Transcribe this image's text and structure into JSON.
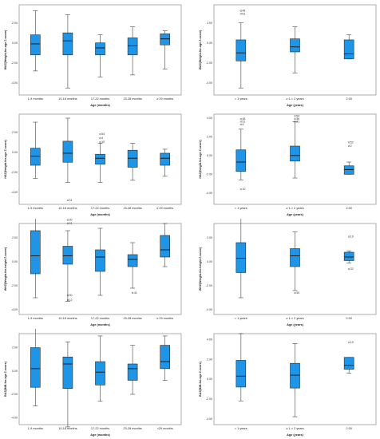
{
  "chart_data": [
    {
      "type": "box",
      "ylabel": "WAZ(Weight-for-age Z-score)",
      "xlabel": "Age (months)",
      "yticks": [
        2.0,
        0.0,
        -2.0,
        -4.0
      ],
      "ylim": [
        -5.2,
        3.8
      ],
      "categories": [
        {
          "label": "1-9 months",
          "min": -2.8,
          "q1": -1.2,
          "median": -0.1,
          "q3": 0.8,
          "max": 3.2,
          "outliers": []
        },
        {
          "label": "10-16 months",
          "min": -4.5,
          "q1": -1.2,
          "median": 0.2,
          "q3": 1.0,
          "max": 2.8,
          "outliers": []
        },
        {
          "label": "17-22 months",
          "min": -3.4,
          "q1": -1.2,
          "median": -0.5,
          "q3": 0.0,
          "max": 0.8,
          "outliers": []
        },
        {
          "label": "23-28 months",
          "min": -3.2,
          "q1": -1.2,
          "median": -0.3,
          "q3": 0.5,
          "max": 1.6,
          "outliers": []
        },
        {
          "label": "≥ 29 months",
          "min": -2.6,
          "q1": -0.2,
          "median": 0.4,
          "q3": 0.9,
          "max": 1.2,
          "outliers": []
        }
      ]
    },
    {
      "type": "box",
      "ylabel": "WAZ(Weight-for-age Z-score)",
      "xlabel": "Age (years)",
      "yticks": [
        2.0,
        0.0,
        -2.0,
        -4.0
      ],
      "ylim": [
        -5.2,
        3.8
      ],
      "categories": [
        {
          "label": "< 1 years",
          "min": -4.5,
          "q1": -1.8,
          "median": -1.0,
          "q3": 0.3,
          "max": 2.0,
          "outliers": [
            {
              "y": 3.2,
              "label": "48"
            },
            {
              "y": 2.9,
              "label": "51"
            }
          ]
        },
        {
          "label": "≥ 1-< 2 years",
          "min": -3.0,
          "q1": -0.9,
          "median": -0.4,
          "q3": 0.4,
          "max": 1.6,
          "outliers": []
        },
        {
          "label": "2.00",
          "min": -1.6,
          "q1": -1.6,
          "median": -1.1,
          "q3": 0.3,
          "max": 0.8,
          "outliers": []
        }
      ]
    },
    {
      "type": "box",
      "ylabel": "HAZ(Height-for-age Z-score)",
      "xlabel": "Age (months)",
      "yticks": [
        2.0,
        0.0,
        -2.0,
        -4.0
      ],
      "ylim": [
        -5.2,
        3.8
      ],
      "categories": [
        {
          "label": "1-9 months",
          "min": -2.6,
          "q1": -1.3,
          "median": -0.4,
          "q3": 0.4,
          "max": 3.0,
          "outliers": []
        },
        {
          "label": "10-16 months",
          "min": -3.0,
          "q1": -1.0,
          "median": -0.1,
          "q3": 1.1,
          "max": 3.4,
          "outliers": [
            {
              "y": -4.8,
              "label": "31"
            }
          ]
        },
        {
          "label": "17-22 months",
          "min": -3.0,
          "q1": -1.2,
          "median": -0.6,
          "q3": -0.2,
          "max": 0.9,
          "outliers": [
            {
              "y": 1.8,
              "label": "54"
            },
            {
              "y": 1.4,
              "label": "4"
            },
            {
              "y": 1.0,
              "label": "10"
            }
          ]
        },
        {
          "label": "23-28 months",
          "min": -2.8,
          "q1": -1.5,
          "median": -0.6,
          "q3": 0.2,
          "max": 0.9,
          "outliers": []
        },
        {
          "label": "≥ 29 months",
          "min": -2.4,
          "q1": -1.3,
          "median": -0.6,
          "q3": -0.1,
          "max": 0.3,
          "outliers": []
        }
      ]
    },
    {
      "type": "box",
      "ylabel": "HAZ(Height-for-age Z-score)",
      "xlabel": "Age (years)",
      "yticks": [
        4.0,
        2.0,
        0.0,
        -2.0,
        -4.0
      ],
      "ylim": [
        -5.2,
        4.4
      ],
      "categories": [
        {
          "label": "< 1 years",
          "min": -2.6,
          "q1": -1.7,
          "median": -0.7,
          "q3": 0.6,
          "max": 2.8,
          "outliers": [
            {
              "y": 3.9,
              "label": "48"
            },
            {
              "y": 3.6,
              "label": "51"
            },
            {
              "y": 3.3,
              "label": "4"
            },
            {
              "y": -3.6,
              "label": "10"
            }
          ]
        },
        {
          "label": "≥ 1-< 2 years",
          "min": -2.4,
          "q1": -0.6,
          "median": 0.0,
          "q3": 1.0,
          "max": 3.6,
          "outliers": [
            {
              "y": 4.2,
              "label": "54"
            },
            {
              "y": 3.9,
              "label": "36"
            },
            {
              "y": 3.6,
              "label": "31"
            }
          ]
        },
        {
          "label": "2.00",
          "min": -2.0,
          "q1": -2.0,
          "median": -1.5,
          "q3": -1.1,
          "max": -0.7,
          "outliers": [
            {
              "y": 1.4,
              "label": "52"
            },
            {
              "y": 1.0,
              "label": "2"
            }
          ]
        }
      ]
    },
    {
      "type": "box",
      "ylabel": "WHZ(Weight-for-height Z-score)",
      "xlabel": "Age (months)",
      "yticks": [
        2.0,
        0.0,
        -2.0,
        -4.0
      ],
      "ylim": [
        -4.4,
        3.2
      ],
      "categories": [
        {
          "label": "1-9 months",
          "min": -3.0,
          "q1": -1.0,
          "median": 0.5,
          "q3": 2.6,
          "max": 4.4,
          "outliers": []
        },
        {
          "label": "10-16 months",
          "min": -3.3,
          "q1": -0.2,
          "median": 0.5,
          "q3": 1.3,
          "max": 2.6,
          "outliers": [
            {
              "y": 3.5,
              "label": "30"
            },
            {
              "y": 3.2,
              "label": "31"
            },
            {
              "y": -2.8,
              "label": "30"
            },
            {
              "y": -3.2,
              "label": "12"
            }
          ]
        },
        {
          "label": "17-22 months",
          "min": -2.8,
          "q1": -0.8,
          "median": 0.4,
          "q3": 1.0,
          "max": 2.8,
          "outliers": []
        },
        {
          "label": "23-28 months",
          "min": -2.2,
          "q1": -0.4,
          "median": 0.2,
          "q3": 0.6,
          "max": 1.6,
          "outliers": [
            {
              "y": -2.6,
              "label": "41"
            }
          ]
        },
        {
          "label": "≥ 29 months",
          "min": -0.4,
          "q1": 0.4,
          "median": 1.0,
          "q3": 2.2,
          "max": 3.2,
          "outliers": []
        }
      ]
    },
    {
      "type": "box",
      "ylabel": "WHZ(Weight-for-height Z-score)",
      "xlabel": "Age (years)",
      "yticks": [
        2.0,
        0.0,
        -2.0,
        -4.0
      ],
      "ylim": [
        -4.4,
        3.2
      ],
      "categories": [
        {
          "label": "< 1 years",
          "min": -3.0,
          "q1": -0.9,
          "median": 0.3,
          "q3": 1.6,
          "max": 4.1,
          "outliers": []
        },
        {
          "label": "≥ 1-< 2 years",
          "min": -2.4,
          "q1": -0.4,
          "median": 0.5,
          "q3": 1.1,
          "max": 2.5,
          "outliers": [
            {
              "y": -2.6,
              "label": "30"
            }
          ]
        },
        {
          "label": "2.00",
          "min": -0.1,
          "q1": 0.1,
          "median": 0.4,
          "q3": 0.8,
          "max": 0.9,
          "outliers": [
            {
              "y": 2.1,
              "label": "19"
            },
            {
              "y": -0.6,
              "label": "32"
            }
          ]
        }
      ]
    },
    {
      "type": "box",
      "ylabel": "BAZ(BMI-for-age Z-score)",
      "xlabel": "Age (months)",
      "yticks": [
        2.0,
        0.0,
        -2.0,
        -4.0
      ],
      "ylim": [
        -4.6,
        3.2
      ],
      "categories": [
        {
          "label": "1-9 months",
          "min": -3.0,
          "q1": -1.4,
          "median": 0.2,
          "q3": 2.0,
          "max": 4.1,
          "outliers": []
        },
        {
          "label": "10-16 months",
          "min": -4.8,
          "q1": -1.5,
          "median": 0.6,
          "q3": 1.2,
          "max": 2.5,
          "outliers": [
            {
              "y": 4.0,
              "label": "30"
            },
            {
              "y": 3.7,
              "label": "31"
            }
          ]
        },
        {
          "label": "17-22 months",
          "min": -2.6,
          "q1": -1.2,
          "median": -0.1,
          "q3": 0.8,
          "max": 3.0,
          "outliers": []
        },
        {
          "label": "23-28 months",
          "min": -2.0,
          "q1": -0.8,
          "median": 0.2,
          "q3": 0.6,
          "max": 2.2,
          "outliers": []
        },
        {
          "label": ">29 months",
          "min": -0.8,
          "q1": 0.2,
          "median": 0.8,
          "q3": 2.2,
          "max": 3.0,
          "outliers": []
        }
      ]
    },
    {
      "type": "box",
      "ylabel": "BAZ(BMI-for-age Z-score)",
      "xlabel": "Age (years)",
      "yticks": [
        4.0,
        2.0,
        0.0,
        -2.0,
        -4.0
      ],
      "ylim": [
        -4.6,
        4.6
      ],
      "categories": [
        {
          "label": "< 1 years",
          "min": -2.2,
          "q1": -0.8,
          "median": 0.3,
          "q3": 1.9,
          "max": 4.6,
          "outliers": []
        },
        {
          "label": "≥ 1-< 2 years",
          "min": -3.8,
          "q1": -0.9,
          "median": 0.4,
          "q3": 1.6,
          "max": 3.6,
          "outliers": []
        },
        {
          "label": "2.00",
          "min": 0.6,
          "q1": 1.0,
          "median": 1.4,
          "q3": 2.2,
          "max": 2.2,
          "outliers": [
            {
              "y": 3.7,
              "label": "19"
            }
          ]
        }
      ]
    }
  ]
}
